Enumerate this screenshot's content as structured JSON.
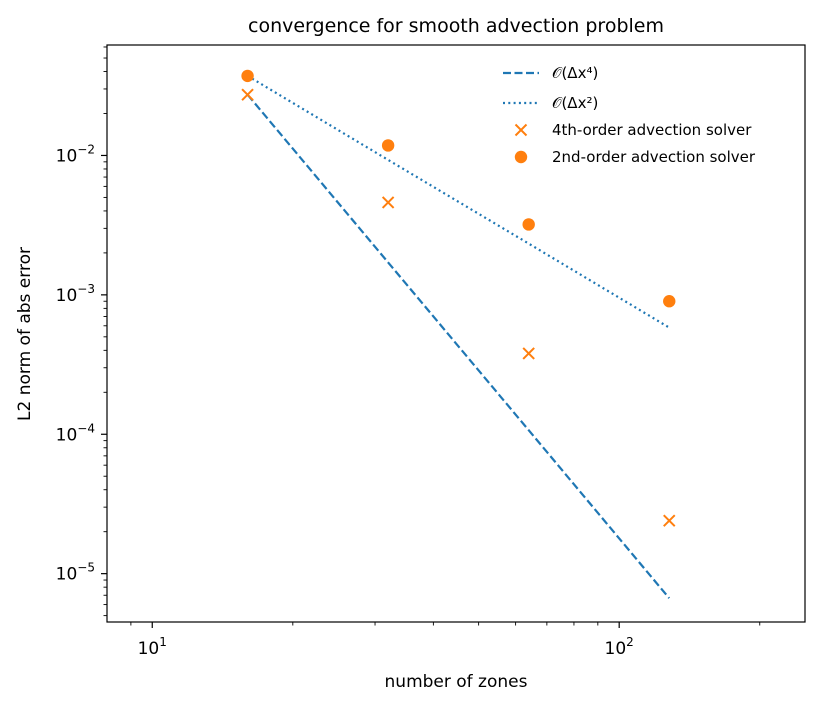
{
  "chart_data": {
    "type": "scatter",
    "title": "convergence for smooth advection problem",
    "xlabel": "number of zones",
    "ylabel": "L2 norm of abs error",
    "xscale": "log",
    "yscale": "log",
    "xlim": [
      8,
      250
    ],
    "ylim": [
      4.5e-06,
      0.062
    ],
    "grid": false,
    "legend_position": "top-right",
    "x_major_ticks": [
      {
        "value": 10,
        "base": "10",
        "exp": "1",
        "sign": ""
      },
      {
        "value": 100,
        "base": "10",
        "exp": "2",
        "sign": ""
      }
    ],
    "y_major_ticks": [
      {
        "value": 0.01,
        "base": "10",
        "exp": "2",
        "sign": "−"
      },
      {
        "value": 0.001,
        "base": "10",
        "exp": "3",
        "sign": "−"
      },
      {
        "value": 0.0001,
        "base": "10",
        "exp": "4",
        "sign": "−"
      },
      {
        "value": 1e-05,
        "base": "10",
        "exp": "5",
        "sign": "−"
      }
    ],
    "series": [
      {
        "name": "𝒪(Δx⁴)",
        "kind": "line",
        "style": "dashed",
        "color": "#1f77b4",
        "x": [
          16,
          32,
          64,
          128
        ],
        "y": [
          0.0273,
          0.00171,
          0.000107,
          6.67e-06
        ]
      },
      {
        "name": "𝒪(Δx²)",
        "kind": "line",
        "style": "dotted",
        "color": "#1f77b4",
        "x": [
          16,
          32,
          64,
          128
        ],
        "y": [
          0.0372,
          0.0093,
          0.00233,
          0.000582
        ]
      },
      {
        "name": "4th-order advection solver",
        "kind": "scatter",
        "marker": "x",
        "color": "#ff7f0e",
        "x": [
          16,
          32,
          64,
          128
        ],
        "y": [
          0.0273,
          0.0046,
          0.00038,
          2.4e-05
        ]
      },
      {
        "name": "2nd-order advection solver",
        "kind": "scatter",
        "marker": "o",
        "color": "#ff7f0e",
        "x": [
          16,
          32,
          64,
          128
        ],
        "y": [
          0.0372,
          0.0118,
          0.0032,
          0.0009
        ]
      }
    ]
  }
}
